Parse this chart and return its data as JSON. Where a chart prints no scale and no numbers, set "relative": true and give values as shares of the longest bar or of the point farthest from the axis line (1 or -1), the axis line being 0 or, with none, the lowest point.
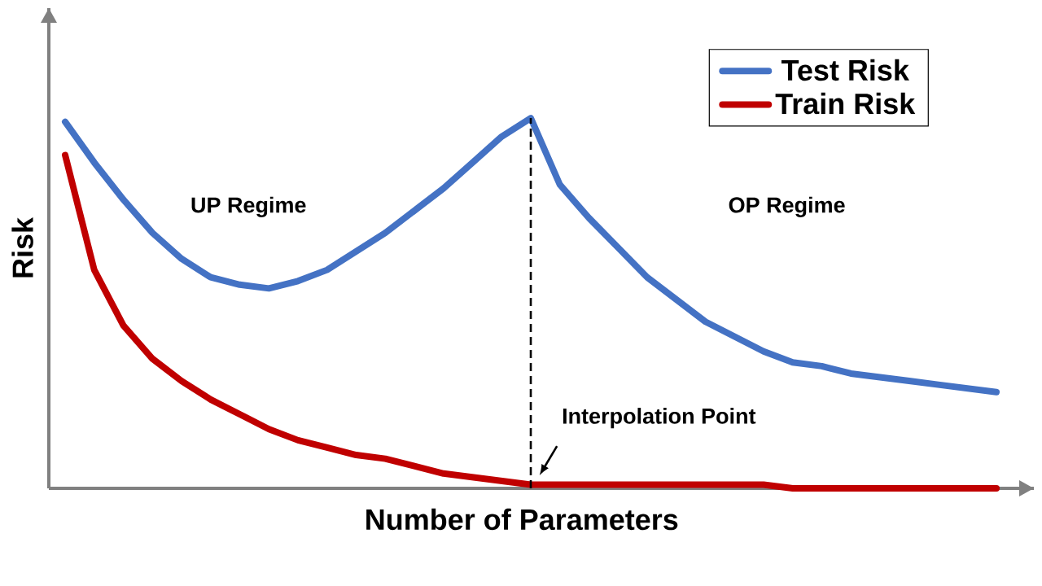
{
  "chart_data": {
    "type": "line",
    "relative": true,
    "categories": [
      null,
      null,
      null,
      null,
      null,
      null,
      null,
      null,
      null,
      null,
      null,
      null,
      null,
      null,
      null,
      null,
      null,
      null,
      null,
      null,
      null,
      null,
      null,
      null,
      null,
      null,
      null,
      null,
      null,
      null,
      null,
      null,
      null
    ],
    "series": [
      {
        "name": "Test Risk",
        "color": "#4472c4",
        "values": [
          0.99,
          0.88,
          0.78,
          0.69,
          0.62,
          0.57,
          0.55,
          0.54,
          0.56,
          0.59,
          0.64,
          0.69,
          0.75,
          0.81,
          0.88,
          0.95,
          1.0,
          0.82,
          0.73,
          0.65,
          0.57,
          0.51,
          0.45,
          0.41,
          0.37,
          0.34,
          0.33,
          0.31,
          0.3,
          0.29,
          0.28,
          0.27,
          0.26
        ]
      },
      {
        "name": "Train Risk",
        "color": "#c00000",
        "values": [
          0.9,
          0.59,
          0.44,
          0.35,
          0.29,
          0.24,
          0.2,
          0.16,
          0.13,
          0.11,
          0.09,
          0.08,
          0.06,
          0.04,
          0.03,
          0.02,
          0.01,
          0.01,
          0.01,
          0.01,
          0.01,
          0.01,
          0.01,
          0.01,
          0.01,
          0.0,
          0.0,
          0.0,
          0.0,
          0.0,
          0.0,
          0.0,
          0.0
        ]
      }
    ],
    "xlabel": "Number of Parameters",
    "ylabel": "Risk",
    "annotations": [
      "UP Regime",
      "OP Regime",
      "Interpolation Point"
    ],
    "legend": "top right",
    "marker": "none",
    "line_style": "solid"
  }
}
